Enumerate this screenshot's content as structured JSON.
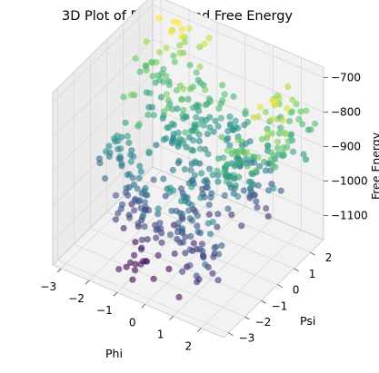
{
  "chart_data": {
    "type": "scatter",
    "projection": "3d",
    "title": "3D Plot of Phi, Psi, and Free Energy",
    "xlabel": "Phi",
    "ylabel": "Psi",
    "zlabel": "Free Energy",
    "x_ticks": [
      "−3",
      "−2",
      "−1",
      "0",
      "1",
      "2"
    ],
    "y_ticks": [
      "−3",
      "−2",
      "−1",
      "0",
      "1",
      "2"
    ],
    "z_ticks": [
      "−700",
      "−800",
      "−900",
      "−1000",
      "−1100"
    ],
    "xlim": [
      -3.3,
      2.8
    ],
    "ylim": [
      -3.3,
      2.8
    ],
    "zlim": [
      -1170,
      -670
    ],
    "grid": true,
    "colormap": "viridis",
    "colormap_stops": [
      "#440154",
      "#3b528b",
      "#21918c",
      "#5ec962",
      "#fde725"
    ],
    "pane_color": "#f2f2f2",
    "grid_color": "#d9d9d9",
    "clusters": [
      {
        "phi": -2.6,
        "psi": 1.7,
        "fe": -830,
        "count": 30
      },
      {
        "phi": -1.7,
        "psi": 2.3,
        "fe": -760,
        "count": 22
      },
      {
        "phi": -0.9,
        "psi": 1.4,
        "fe": -900,
        "count": 40
      },
      {
        "phi": 0.0,
        "psi": 2.0,
        "fe": -880,
        "count": 30
      },
      {
        "phi": 1.2,
        "psi": 1.3,
        "fe": -950,
        "count": 40
      },
      {
        "phi": 2.0,
        "psi": 2.1,
        "fe": -820,
        "count": 30
      },
      {
        "phi": 2.5,
        "psi": 0.4,
        "fe": -780,
        "count": 30
      },
      {
        "phi": 1.7,
        "psi": -0.6,
        "fe": -840,
        "count": 30
      },
      {
        "phi": -2.5,
        "psi": -0.6,
        "fe": -940,
        "count": 30
      },
      {
        "phi": -1.5,
        "psi": -1.3,
        "fe": -1010,
        "count": 40
      },
      {
        "phi": -0.6,
        "psi": -2.3,
        "fe": -1060,
        "count": 35
      },
      {
        "phi": 0.5,
        "psi": -1.6,
        "fe": -990,
        "count": 40
      },
      {
        "phi": 1.5,
        "psi": -2.5,
        "fe": -1030,
        "count": 25
      },
      {
        "phi": -0.3,
        "psi": -0.2,
        "fe": -970,
        "count": 40
      },
      {
        "phi": 0.9,
        "psi": 0.2,
        "fe": -920,
        "count": 35
      },
      {
        "phi": -1.2,
        "psi": 0.6,
        "fe": -880,
        "count": 35
      }
    ]
  }
}
